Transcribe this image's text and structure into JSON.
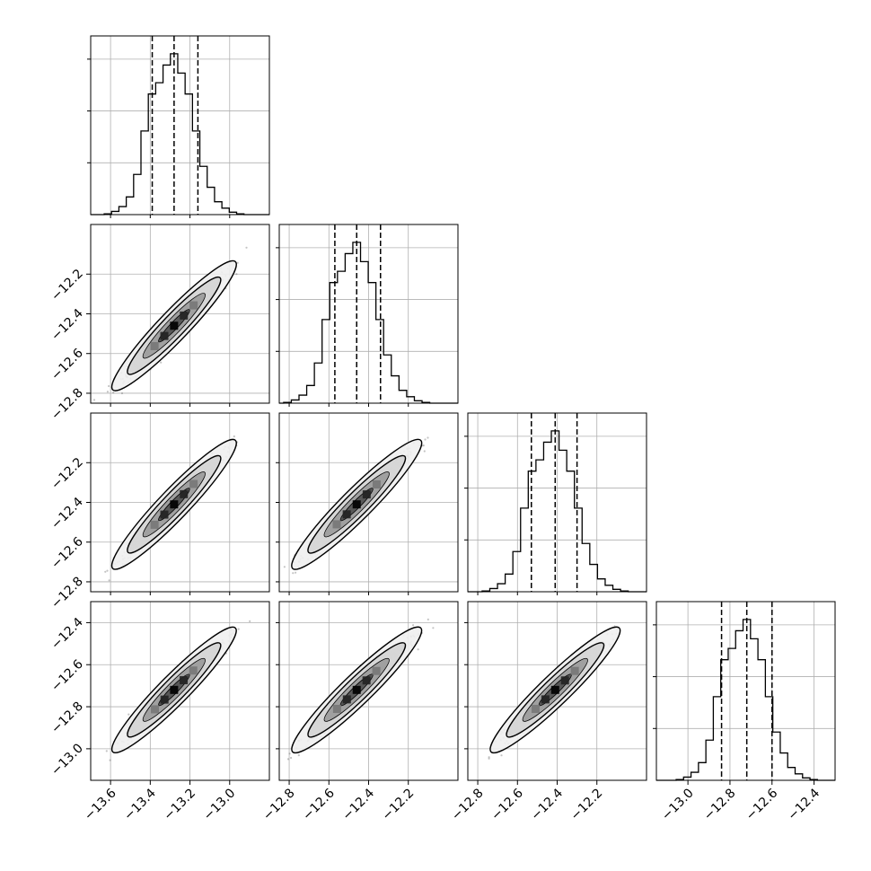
{
  "chart_data": {
    "type": "corner",
    "params": [
      {
        "xlim": [
          -13.7,
          -12.8
        ],
        "xticks": [
          -13.6,
          -13.4,
          -13.2,
          -13.0
        ],
        "xtick_labels": [
          "−13.6",
          "−13.4",
          "−13.2",
          "−13.0"
        ],
        "yticks": [
          -12.2,
          -12.4,
          -12.6,
          -12.8
        ],
        "mean": -13.28,
        "sigma": 0.11,
        "quantiles": [
          -13.39,
          -13.28,
          -13.16
        ]
      },
      {
        "xlim": [
          -12.85,
          -11.95
        ],
        "xticks": [
          -12.8,
          -12.6,
          -12.4,
          -12.2
        ],
        "xtick_labels": [
          "−12.8",
          "−12.6",
          "−12.4",
          "−12.2"
        ],
        "yticks": [
          -12.2,
          -12.4,
          -12.6,
          -12.8
        ],
        "ylabels": [
          "−12.2",
          "−12.4",
          "−12.6",
          "−12.8"
        ],
        "mean": -12.46,
        "sigma": 0.115,
        "quantiles": [
          -12.57,
          -12.46,
          -12.34
        ]
      },
      {
        "xlim": [
          -12.85,
          -11.95
        ],
        "xticks": [
          -12.8,
          -12.6,
          -12.4,
          -12.2
        ],
        "xtick_labels": [
          "−12.8",
          "−12.6",
          "−12.4",
          "−12.2"
        ],
        "yticks": [
          -12.2,
          -12.4,
          -12.6,
          -12.8
        ],
        "ylabels": [
          "−12.2",
          "−12.4",
          "−12.6",
          "−12.8"
        ],
        "mean": -12.41,
        "sigma": 0.115,
        "quantiles": [
          -12.53,
          -12.41,
          -12.3
        ]
      },
      {
        "xlim": [
          -13.15,
          -12.3
        ],
        "xticks": [
          -13.0,
          -12.8,
          -12.6,
          -12.4
        ],
        "xtick_labels": [
          "−13.0",
          "−12.8",
          "−12.6",
          "−12.4"
        ],
        "yticks": [
          -12.4,
          -12.6,
          -12.8,
          -13.0
        ],
        "ylabels": [
          "−12.4",
          "−12.6",
          "−12.8",
          "−13.0"
        ],
        "mean": -12.72,
        "sigma": 0.105,
        "quantiles": [
          -12.84,
          -12.72,
          -12.6
        ]
      }
    ],
    "hist_counts": [
      0.005,
      0.02,
      0.05,
      0.11,
      0.25,
      0.52,
      0.75,
      0.82,
      0.93,
      1.0,
      0.88,
      0.75,
      0.52,
      0.3,
      0.17,
      0.08,
      0.04,
      0.015,
      0.005
    ],
    "correlation": 0.97,
    "contour_levels": [
      0.5,
      1.0,
      1.5,
      2.0
    ],
    "colors": {
      "line": "#000000",
      "points": "#555555",
      "grid": "#b0b0b0"
    }
  }
}
